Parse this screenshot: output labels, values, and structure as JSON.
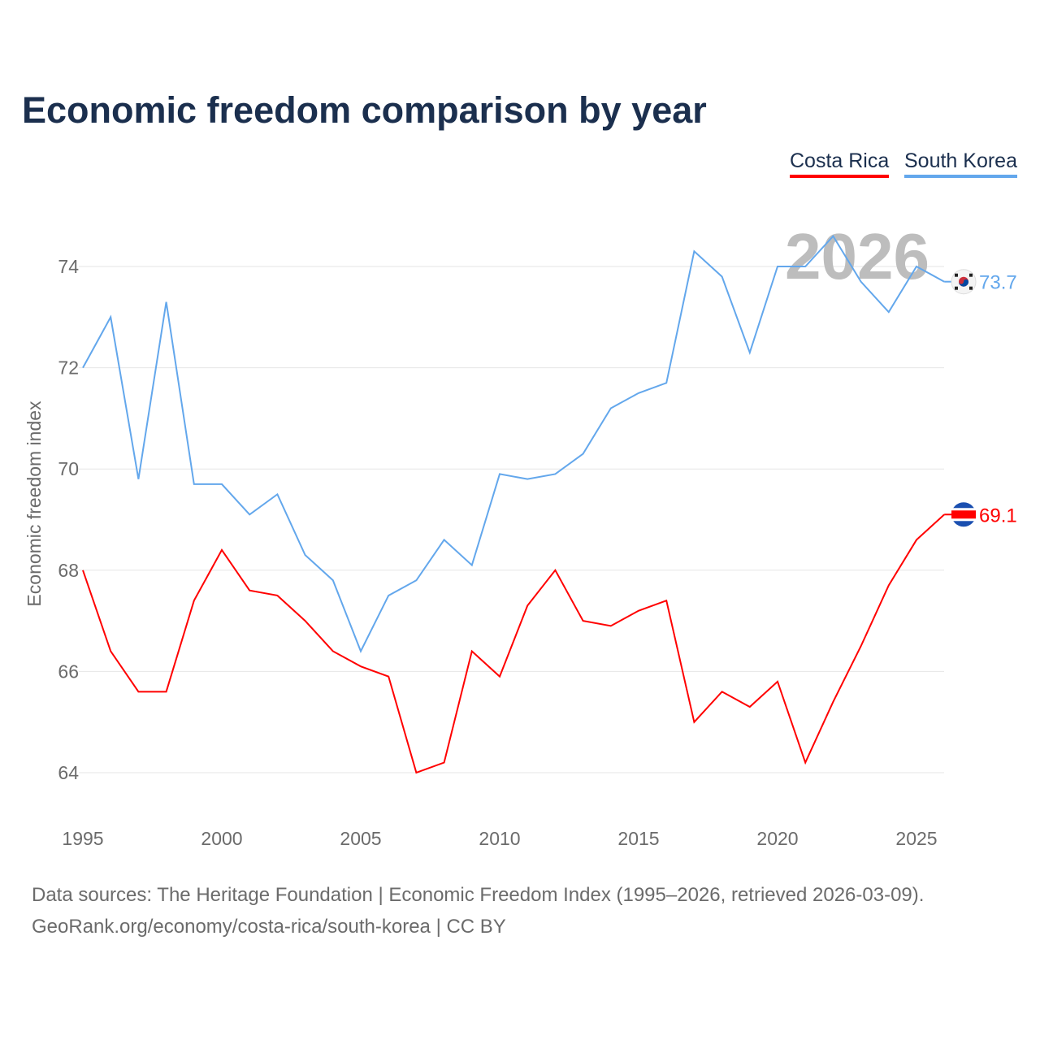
{
  "title": "Economic freedom comparison by year",
  "footer": {
    "line1": "Data sources: The Heritage Foundation | Economic Freedom Index (1995–2026, retrieved 2026-03-09).",
    "line2": "GeoRank.org/economy/costa-rica/south-korea | CC BY"
  },
  "chart_data": {
    "type": "line",
    "title": "Economic freedom comparison by year",
    "xlabel": "",
    "ylabel": "Economic freedom index",
    "xlim": [
      1995,
      2026
    ],
    "ylim": [
      63,
      75
    ],
    "x_ticks": [
      1995,
      2000,
      2005,
      2010,
      2015,
      2020,
      2025
    ],
    "y_ticks": [
      64,
      66,
      68,
      70,
      72,
      74
    ],
    "grid": true,
    "legend_placement": "top-right",
    "watermark_year": "2026",
    "x": [
      1995,
      1996,
      1997,
      1998,
      1999,
      2000,
      2001,
      2002,
      2003,
      2004,
      2005,
      2006,
      2007,
      2008,
      2009,
      2010,
      2011,
      2012,
      2013,
      2014,
      2015,
      2016,
      2017,
      2018,
      2019,
      2020,
      2021,
      2022,
      2023,
      2024,
      2025,
      2026
    ],
    "series": [
      {
        "name": "Costa Rica",
        "color": "#ff0000",
        "end_label": "69.1",
        "values": [
          68.0,
          66.4,
          65.6,
          65.6,
          67.4,
          68.4,
          67.6,
          67.5,
          67.0,
          66.4,
          66.1,
          65.9,
          64.0,
          64.2,
          66.4,
          65.9,
          67.3,
          68.0,
          67.0,
          66.9,
          67.2,
          67.4,
          65.0,
          65.6,
          65.3,
          65.8,
          64.2,
          65.4,
          66.5,
          67.7,
          68.6,
          69.1
        ]
      },
      {
        "name": "South Korea",
        "color": "#63a7ec",
        "end_label": "73.7",
        "values": [
          72.0,
          73.0,
          69.8,
          73.3,
          69.7,
          69.7,
          69.1,
          69.5,
          68.3,
          67.8,
          66.4,
          67.5,
          67.8,
          68.6,
          68.1,
          69.9,
          69.8,
          69.9,
          70.3,
          71.2,
          71.5,
          71.7,
          74.3,
          73.8,
          72.3,
          74.0,
          74.0,
          74.6,
          73.7,
          73.1,
          74.0,
          73.7
        ]
      }
    ]
  }
}
